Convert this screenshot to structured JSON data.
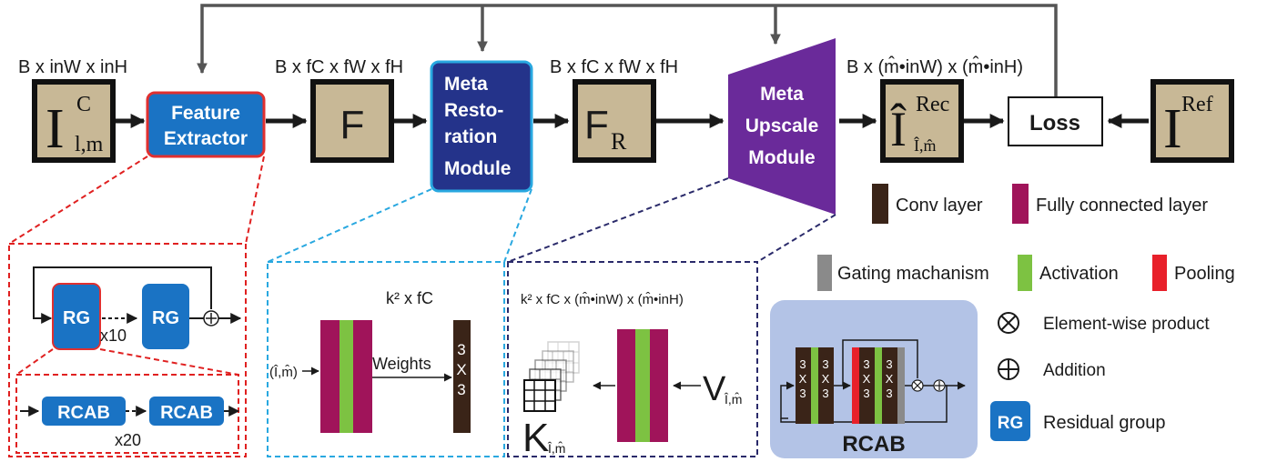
{
  "dims": {
    "input": "B x inW x inH",
    "features": "B x fC x fW x fH",
    "restored": "B x fC x fW x fH",
    "output": "B x (m̂•inW) x (m̂•inH)"
  },
  "blocks": {
    "input_symbol": "I",
    "input_sup": "C",
    "input_sub": "l,m",
    "feature_extractor": [
      "Feature",
      "Extractor"
    ],
    "f_symbol": "F",
    "meta_restoration": [
      "Meta",
      "Resto-",
      "ration",
      "Module"
    ],
    "fr_symbol": "F",
    "fr_sub": "R",
    "meta_upscale": [
      "Meta",
      "Upscale",
      "Module"
    ],
    "rec_symbol": "Î",
    "rec_sup": "Rec",
    "rec_sub": "Î,m̂",
    "loss": "Loss",
    "ref_symbol": "I",
    "ref_sup": "Ref"
  },
  "feature_detail": {
    "rg_label": "RG",
    "rg_repeat": "x10",
    "rcab_label": "RCAB",
    "rcab_repeat": "x20"
  },
  "restoration_detail": {
    "size_label": "k² x fC",
    "input_label": "(Î,m̂)",
    "weights_label": "Weights",
    "kernel_label": [
      "3",
      "X",
      "3"
    ]
  },
  "upscale_detail": {
    "size_label": "k² x fC x (m̂•inW) x (m̂•inH)",
    "k_symbol": "K",
    "k_sub": "Î,m̂",
    "v_symbol": "V",
    "v_sub": "Î,m̂"
  },
  "rcab_detail": {
    "title": "RCAB",
    "kernel_label": [
      "3",
      "X",
      "3"
    ]
  },
  "legend": {
    "conv": "Conv layer",
    "fc": "Fully connected layer",
    "gating": "Gating machanism",
    "activation": "Activation",
    "pooling": "Pooling",
    "product": "Element-wise product",
    "addition": "Addition",
    "rg_badge": "RG",
    "residual_group": "Residual group"
  },
  "colors": {
    "tan": "#c8b896",
    "blue": "#1a73c4",
    "navy": "#24338a",
    "purple": "#6a2a9a",
    "conv": "#3a2418",
    "fc": "#a0145a",
    "activation": "#7dc242",
    "pooling": "#e8202a",
    "gating": "#8a8a8a",
    "red_dash": "#e02020",
    "cyan_dash": "#29a8e0",
    "navy_dash": "#2a2a6a",
    "rcab_bg": "#b3c3e6"
  }
}
